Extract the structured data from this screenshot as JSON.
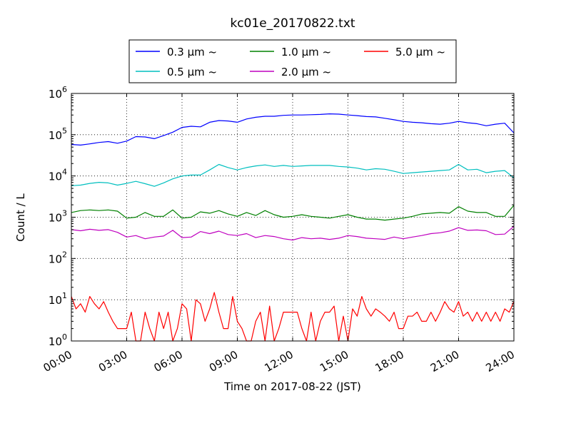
{
  "chart_data": {
    "type": "line",
    "title": "kc01e_20170822.txt",
    "xlabel": "Time on 2017-08-22 (JST)",
    "ylabel": "Count / L",
    "yscale": "log",
    "ylim": [
      1,
      1000000
    ],
    "xlim": [
      "00:00",
      "24:00"
    ],
    "x_ticks": [
      "00:00",
      "03:00",
      "06:00",
      "09:00",
      "12:00",
      "15:00",
      "18:00",
      "21:00",
      "24:00"
    ],
    "y_ticks": [
      {
        "value": 1,
        "base": "10",
        "exp": "0"
      },
      {
        "value": 10,
        "base": "10",
        "exp": "1"
      },
      {
        "value": 100,
        "base": "10",
        "exp": "2"
      },
      {
        "value": 1000,
        "base": "10",
        "exp": "3"
      },
      {
        "value": 10000,
        "base": "10",
        "exp": "4"
      },
      {
        "value": 100000,
        "base": "10",
        "exp": "5"
      },
      {
        "value": 1000000,
        "base": "10",
        "exp": "6"
      }
    ],
    "grid": true,
    "legend_placement": "top-center",
    "legend_suffix": "~",
    "series": [
      {
        "name": "0.3 μm",
        "color": "#0000ff",
        "points": [
          [
            "00:00",
            58000
          ],
          [
            "00:30",
            56000
          ],
          [
            "01:00",
            60000
          ],
          [
            "01:30",
            65000
          ],
          [
            "02:00",
            68000
          ],
          [
            "02:30",
            62000
          ],
          [
            "03:00",
            70000
          ],
          [
            "03:30",
            90000
          ],
          [
            "04:00",
            88000
          ],
          [
            "04:30",
            80000
          ],
          [
            "05:00",
            95000
          ],
          [
            "05:30",
            115000
          ],
          [
            "06:00",
            150000
          ],
          [
            "06:30",
            160000
          ],
          [
            "07:00",
            155000
          ],
          [
            "07:30",
            200000
          ],
          [
            "08:00",
            220000
          ],
          [
            "08:30",
            215000
          ],
          [
            "09:00",
            200000
          ],
          [
            "09:30",
            240000
          ],
          [
            "10:00",
            265000
          ],
          [
            "10:30",
            280000
          ],
          [
            "11:00",
            280000
          ],
          [
            "11:30",
            295000
          ],
          [
            "12:00",
            300000
          ],
          [
            "12:30",
            300000
          ],
          [
            "13:00",
            305000
          ],
          [
            "13:30",
            310000
          ],
          [
            "14:00",
            320000
          ],
          [
            "14:30",
            315000
          ],
          [
            "15:00",
            300000
          ],
          [
            "15:30",
            290000
          ],
          [
            "16:00",
            275000
          ],
          [
            "16:30",
            270000
          ],
          [
            "17:00",
            250000
          ],
          [
            "17:30",
            230000
          ],
          [
            "18:00",
            210000
          ],
          [
            "18:30",
            200000
          ],
          [
            "19:00",
            195000
          ],
          [
            "19:30",
            185000
          ],
          [
            "20:00",
            180000
          ],
          [
            "20:30",
            190000
          ],
          [
            "21:00",
            210000
          ],
          [
            "21:30",
            195000
          ],
          [
            "22:00",
            185000
          ],
          [
            "22:30",
            165000
          ],
          [
            "23:00",
            180000
          ],
          [
            "23:30",
            190000
          ],
          [
            "24:00",
            110000
          ]
        ]
      },
      {
        "name": "0.5 μm",
        "color": "#00bfbf",
        "points": [
          [
            "00:00",
            5800
          ],
          [
            "00:30",
            6000
          ],
          [
            "01:00",
            6600
          ],
          [
            "01:30",
            7000
          ],
          [
            "02:00",
            6800
          ],
          [
            "02:30",
            6000
          ],
          [
            "03:00",
            6600
          ],
          [
            "03:30",
            7400
          ],
          [
            "04:00",
            6500
          ],
          [
            "04:30",
            5600
          ],
          [
            "05:00",
            6800
          ],
          [
            "05:30",
            8500
          ],
          [
            "06:00",
            10000
          ],
          [
            "06:30",
            10500
          ],
          [
            "07:00",
            10500
          ],
          [
            "07:30",
            14000
          ],
          [
            "08:00",
            19000
          ],
          [
            "08:30",
            16000
          ],
          [
            "09:00",
            14000
          ],
          [
            "09:30",
            16000
          ],
          [
            "10:00",
            17500
          ],
          [
            "10:30",
            18500
          ],
          [
            "11:00",
            17000
          ],
          [
            "11:30",
            18000
          ],
          [
            "12:00",
            17000
          ],
          [
            "12:30",
            17500
          ],
          [
            "13:00",
            18000
          ],
          [
            "13:30",
            18000
          ],
          [
            "14:00",
            18000
          ],
          [
            "14:30",
            17000
          ],
          [
            "15:00",
            16500
          ],
          [
            "15:30",
            15500
          ],
          [
            "16:00",
            14000
          ],
          [
            "16:30",
            15000
          ],
          [
            "17:00",
            14500
          ],
          [
            "17:30",
            13000
          ],
          [
            "18:00",
            11500
          ],
          [
            "18:30",
            12000
          ],
          [
            "19:00",
            12500
          ],
          [
            "19:30",
            13000
          ],
          [
            "20:00",
            13500
          ],
          [
            "20:30",
            14000
          ],
          [
            "21:00",
            19000
          ],
          [
            "21:30",
            14000
          ],
          [
            "22:00",
            14500
          ],
          [
            "22:30",
            12000
          ],
          [
            "23:00",
            13000
          ],
          [
            "23:30",
            13500
          ],
          [
            "24:00",
            9000
          ]
        ]
      },
      {
        "name": "1.0 μm",
        "color": "#008000",
        "points": [
          [
            "00:00",
            1300
          ],
          [
            "00:30",
            1450
          ],
          [
            "01:00",
            1500
          ],
          [
            "01:30",
            1450
          ],
          [
            "02:00",
            1500
          ],
          [
            "02:30",
            1400
          ],
          [
            "03:00",
            950
          ],
          [
            "03:30",
            1000
          ],
          [
            "04:00",
            1300
          ],
          [
            "04:30",
            1050
          ],
          [
            "05:00",
            1050
          ],
          [
            "05:30",
            1500
          ],
          [
            "06:00",
            950
          ],
          [
            "06:30",
            1000
          ],
          [
            "07:00",
            1350
          ],
          [
            "07:30",
            1250
          ],
          [
            "08:00",
            1450
          ],
          [
            "08:30",
            1200
          ],
          [
            "09:00",
            1050
          ],
          [
            "09:30",
            1300
          ],
          [
            "10:00",
            1100
          ],
          [
            "10:30",
            1450
          ],
          [
            "11:00",
            1150
          ],
          [
            "11:30",
            1000
          ],
          [
            "12:00",
            1050
          ],
          [
            "12:30",
            1150
          ],
          [
            "13:00",
            1050
          ],
          [
            "13:30",
            1000
          ],
          [
            "14:00",
            950
          ],
          [
            "14:30",
            1050
          ],
          [
            "15:00",
            1150
          ],
          [
            "15:30",
            1000
          ],
          [
            "16:00",
            900
          ],
          [
            "16:30",
            900
          ],
          [
            "17:00",
            850
          ],
          [
            "17:30",
            900
          ],
          [
            "18:00",
            950
          ],
          [
            "18:30",
            1050
          ],
          [
            "19:00",
            1200
          ],
          [
            "19:30",
            1250
          ],
          [
            "20:00",
            1300
          ],
          [
            "20:30",
            1250
          ],
          [
            "21:00",
            1800
          ],
          [
            "21:30",
            1400
          ],
          [
            "22:00",
            1300
          ],
          [
            "22:30",
            1300
          ],
          [
            "23:00",
            1050
          ],
          [
            "23:30",
            1050
          ],
          [
            "24:00",
            1950
          ]
        ]
      },
      {
        "name": "2.0 μm",
        "color": "#bf00bf",
        "points": [
          [
            "00:00",
            500
          ],
          [
            "00:30",
            470
          ],
          [
            "01:00",
            510
          ],
          [
            "01:30",
            480
          ],
          [
            "02:00",
            500
          ],
          [
            "02:30",
            430
          ],
          [
            "03:00",
            330
          ],
          [
            "03:30",
            360
          ],
          [
            "04:00",
            300
          ],
          [
            "04:30",
            330
          ],
          [
            "05:00",
            350
          ],
          [
            "05:30",
            480
          ],
          [
            "06:00",
            320
          ],
          [
            "06:30",
            330
          ],
          [
            "07:00",
            450
          ],
          [
            "07:30",
            400
          ],
          [
            "08:00",
            460
          ],
          [
            "08:30",
            380
          ],
          [
            "09:00",
            360
          ],
          [
            "09:30",
            400
          ],
          [
            "10:00",
            320
          ],
          [
            "10:30",
            360
          ],
          [
            "11:00",
            340
          ],
          [
            "11:30",
            300
          ],
          [
            "12:00",
            280
          ],
          [
            "12:30",
            320
          ],
          [
            "13:00",
            300
          ],
          [
            "13:30",
            310
          ],
          [
            "14:00",
            290
          ],
          [
            "14:30",
            310
          ],
          [
            "15:00",
            360
          ],
          [
            "15:30",
            340
          ],
          [
            "16:00",
            310
          ],
          [
            "16:30",
            300
          ],
          [
            "17:00",
            290
          ],
          [
            "17:30",
            330
          ],
          [
            "18:00",
            300
          ],
          [
            "18:30",
            330
          ],
          [
            "19:00",
            360
          ],
          [
            "19:30",
            400
          ],
          [
            "20:00",
            420
          ],
          [
            "20:30",
            460
          ],
          [
            "21:00",
            560
          ],
          [
            "21:30",
            480
          ],
          [
            "22:00",
            490
          ],
          [
            "22:30",
            470
          ],
          [
            "23:00",
            380
          ],
          [
            "23:30",
            390
          ],
          [
            "24:00",
            600
          ]
        ]
      },
      {
        "name": "5.0 μm",
        "color": "#ff0000",
        "points": [
          [
            "00:00",
            12
          ],
          [
            "00:15",
            6
          ],
          [
            "00:30",
            8
          ],
          [
            "00:45",
            5
          ],
          [
            "01:00",
            12
          ],
          [
            "01:15",
            8
          ],
          [
            "01:30",
            6
          ],
          [
            "01:45",
            9
          ],
          [
            "02:00",
            5
          ],
          [
            "02:15",
            3
          ],
          [
            "02:30",
            2
          ],
          [
            "02:45",
            2
          ],
          [
            "03:00",
            2
          ],
          [
            "03:15",
            5
          ],
          [
            "03:30",
            1
          ],
          [
            "03:45",
            1
          ],
          [
            "04:00",
            5
          ],
          [
            "04:15",
            2
          ],
          [
            "04:30",
            1
          ],
          [
            "04:45",
            5
          ],
          [
            "05:00",
            2
          ],
          [
            "05:15",
            5
          ],
          [
            "05:30",
            1
          ],
          [
            "05:45",
            2
          ],
          [
            "06:00",
            8
          ],
          [
            "06:15",
            6
          ],
          [
            "06:30",
            1
          ],
          [
            "06:45",
            10
          ],
          [
            "07:00",
            8
          ],
          [
            "07:15",
            3
          ],
          [
            "07:30",
            6
          ],
          [
            "07:45",
            15
          ],
          [
            "08:00",
            5
          ],
          [
            "08:15",
            2
          ],
          [
            "08:30",
            2
          ],
          [
            "08:45",
            12
          ],
          [
            "09:00",
            3
          ],
          [
            "09:15",
            2
          ],
          [
            "09:30",
            1
          ],
          [
            "09:45",
            1
          ],
          [
            "10:00",
            3
          ],
          [
            "10:15",
            5
          ],
          [
            "10:30",
            1
          ],
          [
            "10:45",
            7
          ],
          [
            "11:00",
            1
          ],
          [
            "11:15",
            2
          ],
          [
            "11:30",
            5
          ],
          [
            "11:45",
            5
          ],
          [
            "12:00",
            5
          ],
          [
            "12:15",
            5
          ],
          [
            "12:30",
            2
          ],
          [
            "12:45",
            1
          ],
          [
            "13:00",
            5
          ],
          [
            "13:15",
            1
          ],
          [
            "13:30",
            3
          ],
          [
            "13:45",
            5
          ],
          [
            "14:00",
            5
          ],
          [
            "14:15",
            7
          ],
          [
            "14:30",
            1
          ],
          [
            "14:45",
            4
          ],
          [
            "15:00",
            1
          ],
          [
            "15:15",
            6
          ],
          [
            "15:30",
            4
          ],
          [
            "15:45",
            12
          ],
          [
            "16:00",
            6
          ],
          [
            "16:15",
            4
          ],
          [
            "16:30",
            6
          ],
          [
            "16:45",
            5
          ],
          [
            "17:00",
            4
          ],
          [
            "17:15",
            3
          ],
          [
            "17:30",
            5
          ],
          [
            "17:45",
            2
          ],
          [
            "18:00",
            2
          ],
          [
            "18:15",
            4
          ],
          [
            "18:30",
            4
          ],
          [
            "18:45",
            5
          ],
          [
            "19:00",
            3
          ],
          [
            "19:15",
            3
          ],
          [
            "19:30",
            5
          ],
          [
            "19:45",
            3
          ],
          [
            "20:00",
            5
          ],
          [
            "20:15",
            9
          ],
          [
            "20:30",
            6
          ],
          [
            "20:45",
            5
          ],
          [
            "21:00",
            9
          ],
          [
            "21:15",
            4
          ],
          [
            "21:30",
            5
          ],
          [
            "21:45",
            3
          ],
          [
            "22:00",
            5
          ],
          [
            "22:15",
            3
          ],
          [
            "22:30",
            5
          ],
          [
            "22:45",
            3
          ],
          [
            "23:00",
            5
          ],
          [
            "23:15",
            3
          ],
          [
            "23:30",
            6
          ],
          [
            "23:45",
            5
          ],
          [
            "24:00",
            9
          ]
        ]
      }
    ]
  }
}
